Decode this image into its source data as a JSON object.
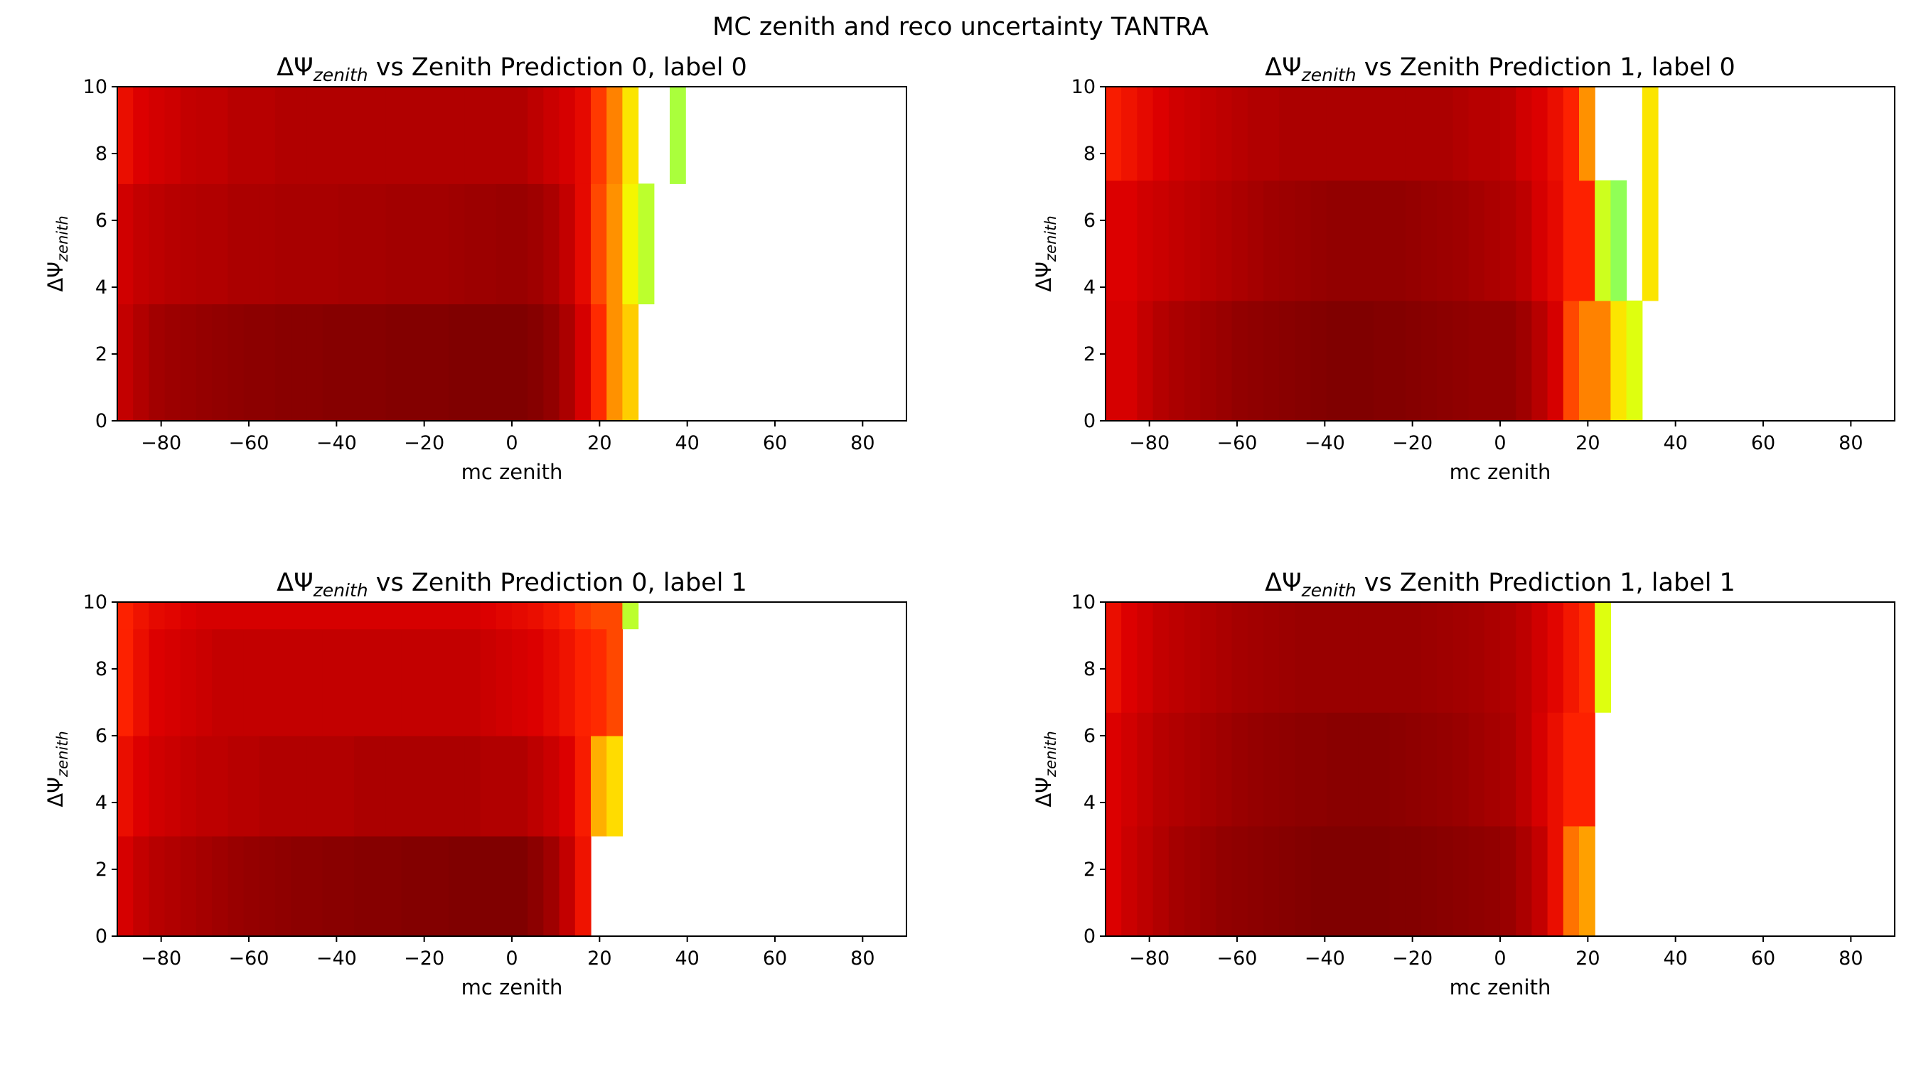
{
  "figure": {
    "suptitle": "MC zenith and reco uncertainty TANTRA"
  },
  "chart_data": [
    {
      "type": "heatmap",
      "title": "ΔΨzenith vs Zenith Prediction 0, label 0",
      "title_parts": {
        "prefix": "ΔΨ",
        "sub": "zenith",
        "suffix": " vs Zenith Prediction 0, label 0"
      },
      "xlabel": "mc zenith",
      "ylabel": {
        "prefix": "ΔΨ",
        "sub": "zenith"
      },
      "xlim": [
        -90,
        90
      ],
      "ylim": [
        0,
        10
      ],
      "xticks": [
        -80,
        -60,
        -40,
        -20,
        0,
        20,
        40,
        60,
        80
      ],
      "yticks": [
        0,
        2,
        4,
        6,
        8,
        10
      ],
      "colormap": "hot-to-green",
      "x_edges": [
        -90,
        -86.4,
        -82.8,
        -79.2,
        -75.6,
        -72,
        -68.4,
        -64.8,
        -61.2,
        -57.6,
        -54,
        -50.4,
        -46.8,
        -43.2,
        -39.6,
        -36,
        -32.4,
        -28.8,
        -25.2,
        -21.6,
        -18,
        -14.4,
        -10.8,
        -7.2,
        -3.6,
        0,
        3.6,
        7.2,
        10.8,
        14.4,
        18,
        21.6,
        25.2,
        28.8,
        32.4,
        36,
        39.6
      ],
      "y_edges": [
        0,
        3.5,
        7.1,
        10
      ],
      "rows": [
        [
          0.22,
          0.16,
          0.11,
          0.09,
          0.08,
          0.07,
          0.06,
          0.05,
          0.04,
          0.04,
          0.03,
          0.03,
          0.03,
          0.02,
          0.02,
          0.02,
          0.02,
          0.01,
          0.01,
          0.01,
          0.01,
          0.0,
          0.0,
          0.0,
          0.0,
          0.0,
          0.02,
          0.06,
          0.14,
          0.28,
          0.46,
          0.6,
          0.68,
          null,
          null,
          null
        ],
        [
          0.26,
          0.22,
          0.2,
          0.18,
          0.17,
          0.16,
          0.16,
          0.14,
          0.14,
          0.14,
          0.13,
          0.13,
          0.13,
          0.13,
          0.12,
          0.12,
          0.12,
          0.11,
          0.11,
          0.11,
          0.11,
          0.1,
          0.09,
          0.09,
          0.08,
          0.08,
          0.1,
          0.14,
          0.22,
          0.34,
          0.5,
          0.6,
          0.76,
          0.84,
          null,
          null
        ],
        [
          0.36,
          0.3,
          0.27,
          0.25,
          0.22,
          0.21,
          0.21,
          0.18,
          0.18,
          0.18,
          0.16,
          0.16,
          0.16,
          0.16,
          0.16,
          0.16,
          0.16,
          0.16,
          0.16,
          0.16,
          0.16,
          0.16,
          0.16,
          0.16,
          0.16,
          0.16,
          0.2,
          0.24,
          0.28,
          0.34,
          0.48,
          0.58,
          0.72,
          null,
          null,
          0.86
        ]
      ]
    },
    {
      "type": "heatmap",
      "title": "ΔΨzenith vs Zenith Prediction 1, label 0",
      "title_parts": {
        "prefix": "ΔΨ",
        "sub": "zenith",
        "suffix": " vs Zenith Prediction 1, label 0"
      },
      "xlabel": "mc zenith",
      "ylabel": {
        "prefix": "ΔΨ",
        "sub": "zenith"
      },
      "xlim": [
        -90,
        90
      ],
      "ylim": [
        0,
        10
      ],
      "xticks": [
        -80,
        -60,
        -40,
        -20,
        0,
        20,
        40,
        60,
        80
      ],
      "yticks": [
        0,
        2,
        4,
        6,
        8,
        10
      ],
      "colormap": "hot-to-green",
      "x_edges": [
        -90,
        -86.4,
        -82.8,
        -79.2,
        -75.6,
        -72,
        -68.4,
        -64.8,
        -61.2,
        -57.6,
        -54,
        -50.4,
        -46.8,
        -43.2,
        -39.6,
        -36,
        -32.4,
        -28.8,
        -25.2,
        -21.6,
        -18,
        -14.4,
        -10.8,
        -7.2,
        -3.6,
        0,
        3.6,
        7.2,
        10.8,
        14.4,
        18,
        21.6,
        25.2,
        28.8,
        32.4,
        36,
        39.6
      ],
      "y_edges": [
        0,
        3.6,
        7.2,
        10
      ],
      "rows": [
        [
          0.28,
          0.28,
          0.22,
          0.17,
          0.14,
          0.12,
          0.1,
          0.08,
          0.06,
          0.05,
          0.04,
          0.03,
          0.02,
          0.01,
          0.0,
          0.0,
          0.0,
          0.01,
          0.01,
          0.02,
          0.03,
          0.04,
          0.05,
          0.06,
          0.06,
          0.06,
          0.1,
          0.18,
          0.28,
          0.5,
          0.58,
          0.58,
          0.72,
          0.8,
          null,
          null
        ],
        [
          0.3,
          0.3,
          0.26,
          0.24,
          0.22,
          0.2,
          0.18,
          0.16,
          0.14,
          0.12,
          0.1,
          0.09,
          0.08,
          0.07,
          0.06,
          0.06,
          0.06,
          0.06,
          0.06,
          0.07,
          0.08,
          0.09,
          0.1,
          0.12,
          0.14,
          0.16,
          0.2,
          0.28,
          0.34,
          0.44,
          0.44,
          0.82,
          0.92,
          null,
          0.72,
          null
        ],
        [
          0.42,
          0.38,
          0.34,
          0.3,
          0.26,
          0.24,
          0.22,
          0.2,
          0.18,
          0.16,
          0.16,
          0.14,
          0.14,
          0.14,
          0.14,
          0.14,
          0.14,
          0.14,
          0.14,
          0.14,
          0.14,
          0.14,
          0.16,
          0.18,
          0.18,
          0.2,
          0.26,
          0.3,
          0.36,
          0.44,
          0.6,
          null,
          null,
          null,
          0.72,
          null
        ]
      ]
    },
    {
      "type": "heatmap",
      "title": "ΔΨzenith vs Zenith Prediction 0, label 1",
      "title_parts": {
        "prefix": "ΔΨ",
        "sub": "zenith",
        "suffix": " vs Zenith Prediction 0, label 1"
      },
      "xlabel": "mc zenith",
      "ylabel": {
        "prefix": "ΔΨ",
        "sub": "zenith"
      },
      "xlim": [
        -90,
        90
      ],
      "ylim": [
        0,
        10
      ],
      "xticks": [
        -80,
        -60,
        -40,
        -20,
        0,
        20,
        40,
        60,
        80
      ],
      "yticks": [
        0,
        2,
        4,
        6,
        8,
        10
      ],
      "colormap": "hot-to-green",
      "x_edges": [
        -90,
        -86.4,
        -82.8,
        -79.2,
        -75.6,
        -72,
        -68.4,
        -64.8,
        -61.2,
        -57.6,
        -54,
        -50.4,
        -46.8,
        -43.2,
        -39.6,
        -36,
        -32.4,
        -28.8,
        -25.2,
        -21.6,
        -18,
        -14.4,
        -10.8,
        -7.2,
        -3.6,
        0,
        3.6,
        7.2,
        10.8,
        14.4,
        18,
        21.6,
        25.2,
        28.8,
        32.4,
        36,
        39.6
      ],
      "y_edges": [
        0,
        3,
        6,
        9.2,
        10
      ],
      "rows": [
        [
          0.28,
          0.22,
          0.18,
          0.16,
          0.14,
          0.12,
          0.1,
          0.08,
          0.07,
          0.06,
          0.05,
          0.04,
          0.04,
          0.03,
          0.03,
          0.02,
          0.02,
          0.02,
          0.01,
          0.01,
          0.01,
          0.0,
          0.0,
          0.0,
          0.0,
          0.0,
          0.04,
          0.1,
          0.22,
          0.38,
          null,
          null,
          null,
          null,
          null,
          null
        ],
        [
          0.36,
          0.3,
          0.26,
          0.24,
          0.22,
          0.2,
          0.2,
          0.18,
          0.18,
          0.16,
          0.16,
          0.16,
          0.16,
          0.16,
          0.16,
          0.14,
          0.14,
          0.14,
          0.14,
          0.14,
          0.14,
          0.14,
          0.14,
          0.16,
          0.16,
          0.16,
          0.2,
          0.24,
          0.3,
          0.42,
          0.64,
          0.7,
          null,
          null,
          null,
          null
        ],
        [
          0.44,
          0.36,
          0.3,
          0.28,
          0.26,
          0.24,
          0.22,
          0.22,
          0.22,
          0.22,
          0.22,
          0.22,
          0.22,
          0.22,
          0.22,
          0.22,
          0.22,
          0.22,
          0.22,
          0.22,
          0.22,
          0.22,
          0.22,
          0.24,
          0.26,
          0.28,
          0.3,
          0.34,
          0.38,
          0.44,
          0.46,
          0.5,
          null,
          null,
          null,
          null
        ],
        [
          0.44,
          0.38,
          0.34,
          0.32,
          0.3,
          0.28,
          0.28,
          0.28,
          0.28,
          0.28,
          0.28,
          0.28,
          0.28,
          0.28,
          0.28,
          0.28,
          0.28,
          0.28,
          0.28,
          0.28,
          0.28,
          0.28,
          0.28,
          0.3,
          0.32,
          0.34,
          0.36,
          0.4,
          0.44,
          0.48,
          0.5,
          0.5,
          0.84,
          null,
          null,
          null
        ]
      ]
    },
    {
      "type": "heatmap",
      "title": "ΔΨzenith vs Zenith Prediction 1, label 1",
      "title_parts": {
        "prefix": "ΔΨ",
        "sub": "zenith",
        "suffix": " vs Zenith Prediction 1, label 1"
      },
      "xlabel": "mc zenith",
      "ylabel": {
        "prefix": "ΔΨ",
        "sub": "zenith"
      },
      "xlim": [
        -90,
        90
      ],
      "ylim": [
        0,
        10
      ],
      "xticks": [
        -80,
        -60,
        -40,
        -20,
        0,
        20,
        40,
        60,
        80
      ],
      "yticks": [
        0,
        2,
        4,
        6,
        8,
        10
      ],
      "colormap": "hot-to-green",
      "x_edges": [
        -90,
        -86.4,
        -82.8,
        -79.2,
        -75.6,
        -72,
        -68.4,
        -64.8,
        -61.2,
        -57.6,
        -54,
        -50.4,
        -46.8,
        -43.2,
        -39.6,
        -36,
        -32.4,
        -28.8,
        -25.2,
        -21.6,
        -18,
        -14.4,
        -10.8,
        -7.2,
        -3.6,
        0,
        3.6,
        7.2,
        10.8,
        14.4,
        18,
        21.6,
        25.2,
        28.8,
        32.4,
        36,
        39.6
      ],
      "y_edges": [
        0,
        3.3,
        6.7,
        10
      ],
      "rows": [
        [
          0.3,
          0.24,
          0.2,
          0.16,
          0.12,
          0.1,
          0.08,
          0.06,
          0.05,
          0.04,
          0.03,
          0.02,
          0.01,
          0.0,
          0.0,
          0.0,
          0.0,
          0.0,
          0.01,
          0.01,
          0.02,
          0.03,
          0.04,
          0.05,
          0.06,
          0.08,
          0.14,
          0.22,
          0.36,
          0.56,
          0.62,
          null,
          null,
          null,
          null,
          null
        ],
        [
          0.3,
          0.26,
          0.22,
          0.18,
          0.16,
          0.14,
          0.12,
          0.1,
          0.08,
          0.07,
          0.06,
          0.05,
          0.04,
          0.04,
          0.03,
          0.03,
          0.03,
          0.03,
          0.04,
          0.05,
          0.06,
          0.07,
          0.08,
          0.1,
          0.12,
          0.14,
          0.2,
          0.28,
          0.36,
          0.44,
          0.44,
          null,
          null,
          null,
          null,
          null
        ],
        [
          0.36,
          0.3,
          0.26,
          0.22,
          0.2,
          0.18,
          0.16,
          0.14,
          0.12,
          0.11,
          0.1,
          0.09,
          0.08,
          0.08,
          0.08,
          0.08,
          0.08,
          0.08,
          0.08,
          0.08,
          0.09,
          0.1,
          0.11,
          0.12,
          0.14,
          0.16,
          0.2,
          0.26,
          0.32,
          0.4,
          0.46,
          0.8,
          null,
          null,
          null,
          null
        ]
      ]
    }
  ]
}
